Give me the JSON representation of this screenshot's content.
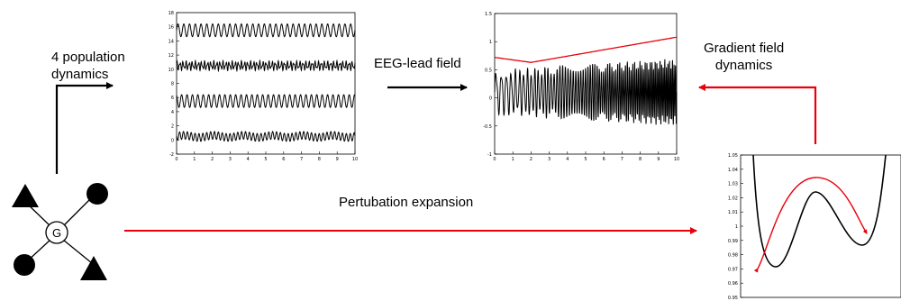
{
  "labels": {
    "population_dynamics": [
      "4 population",
      "dynamics"
    ],
    "eeg_lead_field": "EEG-lead field",
    "gradient_field": [
      "Gradient field",
      "dynamics"
    ],
    "perturbation": "Pertubation expansion",
    "node_center": "G"
  },
  "colors": {
    "red": "#e8000b",
    "black": "#000000"
  },
  "chart_data": [
    {
      "type": "line",
      "xlim": [
        0,
        10
      ],
      "ylim": [
        -2,
        18
      ],
      "xticks": [
        "0",
        "1",
        "2",
        "3",
        "4",
        "5",
        "6",
        "7",
        "8",
        "9",
        "10"
      ],
      "yticks": [
        "-2",
        "0",
        "2",
        "4",
        "6",
        "8",
        "10",
        "12",
        "14",
        "16",
        "18"
      ],
      "series_offsets": [
        15.5,
        10.5,
        5.5,
        0.5
      ]
    },
    {
      "type": "line",
      "xlim": [
        0,
        10
      ],
      "ylim": [
        -1,
        1.5
      ],
      "xticks": [
        "0",
        "1",
        "2",
        "3",
        "4",
        "5",
        "6",
        "7",
        "8",
        "9",
        "10"
      ],
      "yticks": [
        "-1",
        "-0.5",
        "0",
        "0.5",
        "1",
        "1.5"
      ],
      "envelope": {
        "x": [
          0,
          2,
          10
        ],
        "y": [
          0.72,
          0.63,
          1.08
        ]
      }
    },
    {
      "type": "line",
      "ylim": [
        0.95,
        1.05
      ],
      "yticks": [
        "0.95",
        "0.96",
        "0.97",
        "0.98",
        "0.99",
        "1",
        "1.01",
        "1.02",
        "1.03",
        "1.04",
        "1.05"
      ]
    }
  ]
}
